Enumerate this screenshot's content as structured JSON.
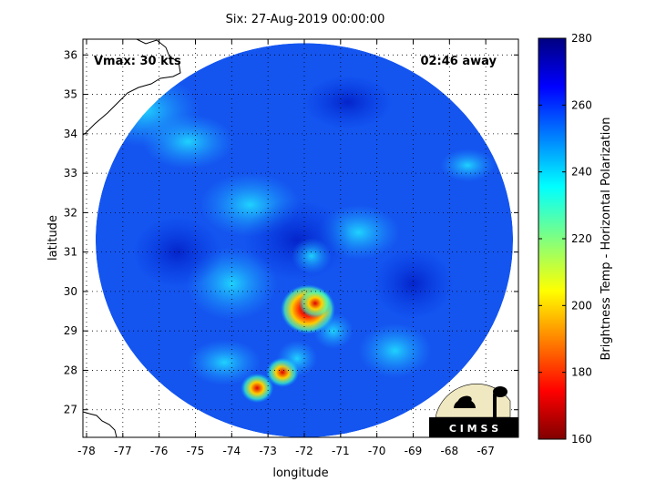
{
  "chart_data": {
    "type": "heatmap",
    "title": "Six: 27-Aug-2019 00:00:00",
    "xlabel": "longitude",
    "ylabel": "latitude",
    "xlim": [
      -78.1,
      -66.1
    ],
    "ylim": [
      26.3,
      36.4
    ],
    "x_ticks": [
      "-78",
      "-77",
      "-76",
      "-75",
      "-74",
      "-73",
      "-72",
      "-71",
      "-70",
      "-69",
      "-68",
      "-67"
    ],
    "y_ticks": [
      "27",
      "28",
      "29",
      "30",
      "31",
      "32",
      "33",
      "34",
      "35",
      "36"
    ],
    "grid": "dotted",
    "annotations": {
      "vmax": "Vmax: 30 kts",
      "away": "02:46 away"
    },
    "colorbar": {
      "label": "Brightness Temp - Horizontal Polarization",
      "range": [
        160,
        280
      ],
      "ticks": [
        "280",
        "260",
        "240",
        "220",
        "200",
        "180",
        "160"
      ],
      "colormap": "jet",
      "colors": [
        "#800000",
        "#ff0000",
        "#ff8000",
        "#ffff00",
        "#80ff80",
        "#00ffff",
        "#0080ff",
        "#0000ff",
        "#000080"
      ]
    },
    "background_brightness_temp": 255,
    "features": [
      {
        "name": "storm core",
        "lon": -71.9,
        "lat": 29.55,
        "value": 172
      },
      {
        "name": "inner band",
        "lon": -71.7,
        "lat": 29.7,
        "value": 198
      },
      {
        "name": "convective cell",
        "lon": -72.6,
        "lat": 27.95,
        "value": 185
      },
      {
        "name": "convective cell",
        "lon": -73.3,
        "lat": 27.55,
        "value": 200
      },
      {
        "name": "rain band",
        "lon": -71.8,
        "lat": 30.9,
        "value": 238
      },
      {
        "name": "rain band",
        "lon": -71.2,
        "lat": 29.0,
        "value": 232
      },
      {
        "name": "rain band",
        "lon": -72.2,
        "lat": 28.3,
        "value": 228
      }
    ],
    "swath": {
      "center_lon": -72.0,
      "center_lat": 31.3,
      "radius_deg_lon": 5.75,
      "radius_deg_lat": 5.0
    }
  },
  "logo": {
    "text": "C I M S S"
  }
}
